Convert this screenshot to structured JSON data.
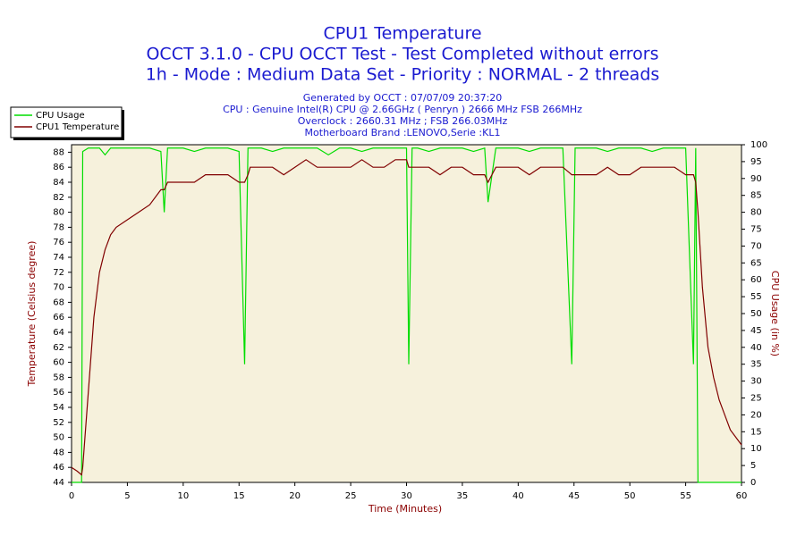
{
  "chart_data": {
    "type": "line",
    "title": "CPU1 Temperature",
    "subtitles": [
      "OCCT 3.1.0 - CPU OCCT Test - Test Completed without errors",
      "1h - Mode : Medium Data Set - Priority : NORMAL - 2 threads"
    ],
    "info": [
      "Generated by OCCT : 07/07/09 20:37:20",
      "CPU : Genuine Intel(R) CPU @ 2.66GHz ( Penryn ) 2666 MHz FSB 266MHz",
      "Overclock : 2660.31 MHz ; FSB 266.03MHz",
      "Motherboard Brand :LENOVO,Serie :KL1"
    ],
    "x_label": "Time (Minutes)",
    "y_label": "Temperature (Celsius degree)",
    "y2_label": "CPU Usage (in %)",
    "xlim": [
      0,
      60
    ],
    "xticks": [
      0,
      5,
      10,
      15,
      20,
      25,
      30,
      35,
      40,
      45,
      50,
      55,
      60
    ],
    "ylim": [
      44,
      89
    ],
    "yticks": [
      44,
      46,
      48,
      50,
      52,
      54,
      56,
      58,
      60,
      62,
      64,
      66,
      68,
      70,
      72,
      74,
      76,
      78,
      80,
      82,
      84,
      86,
      88
    ],
    "y2lim": [
      0,
      100
    ],
    "y2ticks": [
      0,
      5,
      10,
      15,
      20,
      25,
      30,
      35,
      40,
      45,
      50,
      55,
      60,
      65,
      70,
      75,
      80,
      85,
      90,
      95,
      100
    ],
    "grid": false,
    "legend": "top-left",
    "x": [
      0,
      0.5,
      0.9,
      1,
      1.5,
      2,
      2.5,
      3,
      3.5,
      4,
      5,
      6,
      7,
      8,
      8.3,
      8.6,
      9,
      10,
      11,
      12,
      13,
      14,
      15,
      15.5,
      15.8,
      16,
      17,
      18,
      19,
      20,
      21,
      22,
      23,
      24,
      25,
      26,
      27,
      28,
      29,
      30,
      30.2,
      30.5,
      31,
      32,
      33,
      34,
      35,
      36,
      37,
      37.3,
      38,
      39,
      40,
      41,
      42,
      43,
      44,
      44.8,
      45.1,
      46,
      47,
      48,
      49,
      50,
      51,
      52,
      53,
      54,
      55,
      55.7,
      55.9,
      56.1,
      56.5,
      57,
      57.5,
      58,
      58.5,
      59,
      59.5,
      60
    ],
    "series": [
      {
        "name": "CPU Usage",
        "color": "#00dd00",
        "axis": "y2",
        "values": [
          0,
          0,
          0,
          98,
          99,
          99,
          99,
          97,
          99,
          99,
          99,
          99,
          99,
          98,
          80,
          99,
          99,
          99,
          98,
          99,
          99,
          99,
          98,
          35,
          99,
          99,
          99,
          98,
          99,
          99,
          99,
          99,
          97,
          99,
          99,
          98,
          99,
          99,
          99,
          99,
          35,
          99,
          99,
          98,
          99,
          99,
          99,
          98,
          99,
          83,
          99,
          99,
          99,
          98,
          99,
          99,
          99,
          35,
          99,
          99,
          99,
          98,
          99,
          99,
          99,
          98,
          99,
          99,
          99,
          35,
          99,
          0,
          0,
          0,
          0,
          0,
          0,
          0,
          0,
          0
        ]
      },
      {
        "name": "CPU1 Temperature",
        "color": "#800000",
        "axis": "y",
        "values": [
          46,
          45.5,
          45,
          46,
          56,
          66,
          72,
          75,
          77,
          78,
          79,
          80,
          81,
          83,
          83,
          84,
          84,
          84,
          84,
          85,
          85,
          85,
          84,
          84,
          85,
          86,
          86,
          86,
          85,
          86,
          87,
          86,
          86,
          86,
          86,
          87,
          86,
          86,
          87,
          87,
          86,
          86,
          86,
          86,
          85,
          86,
          86,
          85,
          85,
          84,
          86,
          86,
          86,
          85,
          86,
          86,
          86,
          85,
          85,
          85,
          85,
          86,
          85,
          85,
          86,
          86,
          86,
          86,
          85,
          85,
          84,
          80,
          70,
          62,
          58,
          55,
          53,
          51,
          50,
          49
        ]
      }
    ]
  }
}
